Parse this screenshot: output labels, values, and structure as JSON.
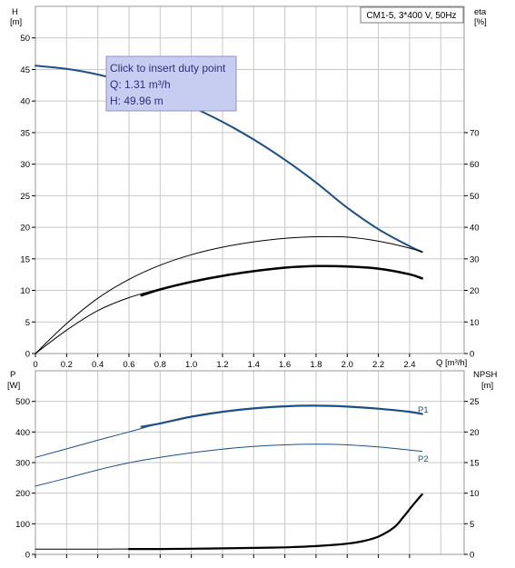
{
  "tooltip": {
    "line1": "Click to insert duty point",
    "line2": "Q: 1.31 m³/h",
    "line3": "H: 49.96 m"
  },
  "colors": {
    "grid": "#c8c8c8",
    "curve_dark_blue": "#1c4f86",
    "curve_black": "#000000",
    "tooltip_bg": "#c7cdf0",
    "tooltip_border": "#8a94cc"
  },
  "chart_data": [
    {
      "type": "line",
      "title": "CM1-5, 3*400 V, 50Hz",
      "xlabel": "Q [m³/h]",
      "ylabel_left": "H\n[m]",
      "ylabel_right": "eta\n[%]",
      "xlim": [
        0,
        2.5
      ],
      "ylim_left": [
        0,
        50
      ],
      "ylim_right": [
        0,
        100
      ],
      "x_ticks": [
        "0",
        "0.2",
        "0.4",
        "0.6",
        "0.8",
        "1.0",
        "1.2",
        "1.4",
        "1.6",
        "1.8",
        "2.0",
        "2.2",
        "2.4"
      ],
      "y_ticks_left": [
        "0",
        "5",
        "10",
        "15",
        "20",
        "25",
        "30",
        "35",
        "40",
        "45",
        "50"
      ],
      "y_ticks_right": [
        "0",
        "10",
        "20",
        "30",
        "40",
        "50",
        "60",
        "70"
      ],
      "grid": true,
      "series": [
        {
          "axis": "left",
          "color": "#1c4f86",
          "width": 2,
          "x": [
            0,
            0.2,
            0.4,
            0.6,
            0.8,
            1.0,
            1.2,
            1.4,
            1.6,
            1.8,
            2.0,
            2.2,
            2.4,
            2.48
          ],
          "y": [
            45.6,
            45.1,
            44.2,
            42.9,
            41.2,
            39.1,
            36.7,
            33.9,
            30.7,
            27.1,
            23.1,
            19.7,
            17.0,
            16.1
          ]
        },
        {
          "axis": "right",
          "color": "#000000",
          "width": 1,
          "x": [
            0,
            0.2,
            0.4,
            0.6,
            0.8,
            1.0,
            1.2,
            1.4,
            1.6,
            1.8,
            2.0,
            2.2,
            2.4,
            2.48
          ],
          "y": [
            0,
            9.5,
            17.5,
            23.5,
            28.0,
            31.3,
            33.7,
            35.4,
            36.5,
            37.0,
            36.9,
            35.6,
            33.4,
            32.2
          ]
        },
        {
          "axis": "right",
          "color": "#000000",
          "width": 1,
          "x": [
            0,
            0.2,
            0.4,
            0.6,
            0.8,
            1.0,
            1.2,
            1.4,
            1.6,
            1.8,
            2.0,
            2.2,
            2.4,
            2.48
          ],
          "y": [
            0,
            7.4,
            13.6,
            17.7,
            20.5,
            22.9,
            24.8,
            26.2,
            27.2,
            27.7,
            27.6,
            26.9,
            25.1,
            23.8
          ]
        },
        {
          "axis": "right",
          "color": "#000000",
          "width": 2.5,
          "x": [
            0.68,
            0.8,
            1.0,
            1.2,
            1.4,
            1.6,
            1.8,
            2.0,
            2.2,
            2.4,
            2.48
          ],
          "y": [
            18.4,
            20.3,
            22.7,
            24.6,
            26.1,
            27.2,
            27.7,
            27.6,
            26.9,
            25.1,
            23.8
          ]
        }
      ]
    },
    {
      "type": "line",
      "xlabel": "",
      "ylabel_left": "P\n[W]",
      "ylabel_right": "NPSH\n[m]",
      "xlim": [
        0,
        2.5
      ],
      "ylim_left": [
        0,
        600
      ],
      "ylim_right": [
        0,
        30
      ],
      "y_ticks_left": [
        "0",
        "100",
        "200",
        "300",
        "400",
        "500"
      ],
      "y_ticks_right": [
        "0",
        "5",
        "10",
        "15",
        "20",
        "25"
      ],
      "grid": true,
      "series": [
        {
          "name": "P1",
          "axis": "left",
          "color": "#1c4f86",
          "width": 1,
          "x": [
            0,
            0.2,
            0.4,
            0.6,
            0.8,
            1.0,
            1.2,
            1.4,
            1.6,
            1.8,
            2.0,
            2.2,
            2.4,
            2.48
          ],
          "y": [
            317,
            345,
            373,
            400,
            428,
            450,
            466,
            477,
            484,
            486,
            483,
            476,
            466,
            459
          ]
        },
        {
          "name": "P1",
          "axis": "left",
          "color": "#1c4f86",
          "width": 2.2,
          "x": [
            0.68,
            0.8,
            1.0,
            1.2,
            1.4,
            1.6,
            1.8,
            2.0,
            2.2,
            2.4,
            2.48
          ],
          "y": [
            417,
            428,
            450,
            466,
            477,
            484,
            486,
            483,
            476,
            466,
            459
          ]
        },
        {
          "name": "P2",
          "axis": "left",
          "color": "#1c4f86",
          "width": 1,
          "x": [
            0,
            0.2,
            0.4,
            0.6,
            0.8,
            1.0,
            1.2,
            1.4,
            1.6,
            1.8,
            2.0,
            2.2,
            2.4,
            2.48
          ],
          "y": [
            223,
            249,
            276,
            299,
            317,
            332,
            344,
            353,
            358,
            360,
            358,
            351,
            341,
            337
          ]
        },
        {
          "axis": "right",
          "color": "#000000",
          "width": 1,
          "x": [
            0,
            0.2,
            0.4,
            0.6
          ],
          "y": [
            0.85,
            0.85,
            0.86,
            0.87
          ]
        },
        {
          "axis": "right",
          "color": "#000000",
          "width": 2.2,
          "x": [
            0.6,
            0.8,
            1.0,
            1.2,
            1.4,
            1.6,
            1.8,
            2.0,
            2.1,
            2.2,
            2.3,
            2.36,
            2.42,
            2.48
          ],
          "y": [
            0.87,
            0.88,
            0.92,
            0.98,
            1.05,
            1.15,
            1.35,
            1.75,
            2.15,
            2.9,
            4.4,
            6.1,
            8.0,
            9.8
          ]
        }
      ]
    }
  ]
}
